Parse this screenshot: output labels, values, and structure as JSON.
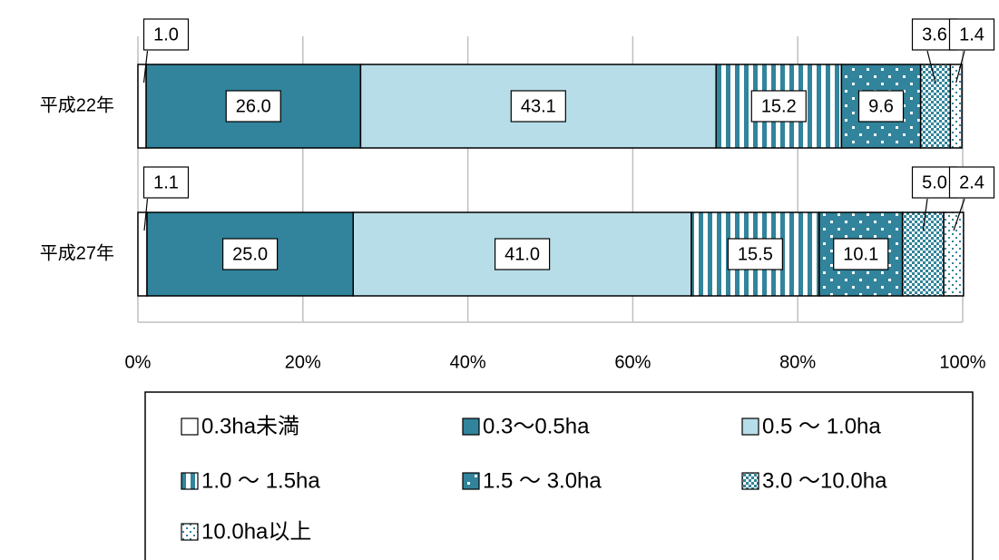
{
  "chart_data": {
    "type": "stacked-bar-horizontal",
    "categories": [
      "平成22年",
      "平成27年"
    ],
    "series": [
      {
        "name": "0.3ha未満",
        "color": "#ffffff",
        "pattern": "solid",
        "values": [
          1.0,
          1.1
        ],
        "value_labels": [
          "1.0",
          "1.1"
        ]
      },
      {
        "name": "0.3〜0.5ha",
        "color": "#31849b",
        "pattern": "solid",
        "values": [
          26.0,
          25.0
        ],
        "value_labels": [
          "26.0",
          "25.0"
        ]
      },
      {
        "name": "0.5 〜 1.0ha",
        "color": "#b7dde8",
        "pattern": "solid",
        "values": [
          43.1,
          41.0
        ],
        "value_labels": [
          "43.1",
          "41.0"
        ]
      },
      {
        "name": "1.0 〜 1.5ha",
        "color": "#31849b",
        "pattern": "vertical-stripes",
        "values": [
          15.2,
          15.5
        ],
        "value_labels": [
          "15.2",
          "15.5"
        ]
      },
      {
        "name": "1.5 〜 3.0ha",
        "color": "#31849b",
        "pattern": "sparse-dots",
        "values": [
          9.6,
          10.1
        ],
        "value_labels": [
          "9.6",
          "10.1"
        ]
      },
      {
        "name": "3.0 〜10.0ha",
        "color": "#31849b",
        "pattern": "checker",
        "values": [
          3.6,
          5.0
        ],
        "value_labels": [
          "3.6",
          "5.0"
        ]
      },
      {
        "name": "10.0ha以上",
        "color": "#31849b",
        "pattern": "fine-dots",
        "values": [
          1.4,
          2.4
        ],
        "value_labels": [
          "1.4",
          "2.4"
        ]
      }
    ],
    "xlim": [
      0,
      100
    ],
    "xticks": [
      {
        "value": 0,
        "label": "0%"
      },
      {
        "value": 20,
        "label": "20%"
      },
      {
        "value": 40,
        "label": "40%"
      },
      {
        "value": 60,
        "label": "60%"
      },
      {
        "value": 80,
        "label": "80%"
      },
      {
        "value": 100,
        "label": "100%"
      }
    ],
    "grid": true,
    "legend": "bottom"
  }
}
